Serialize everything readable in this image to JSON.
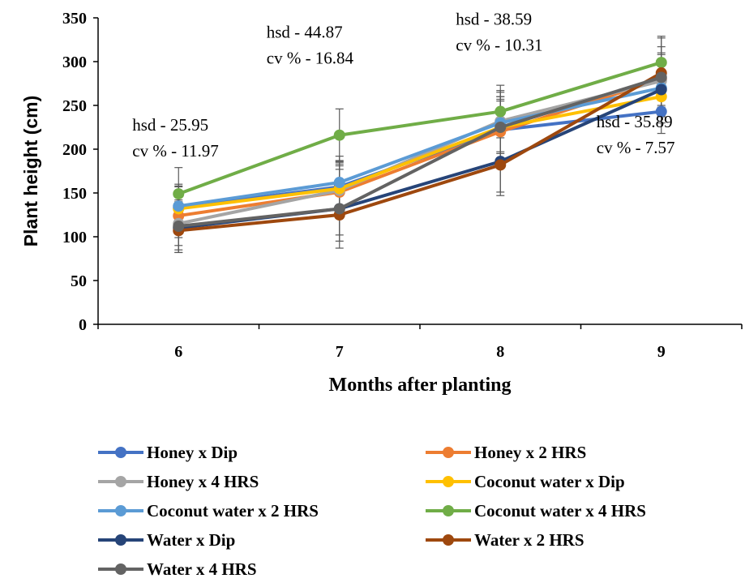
{
  "chart_data": {
    "type": "line",
    "xlabel": "Months after planting",
    "ylabel": "Plant height (cm)",
    "ylim": [
      0,
      350
    ],
    "yticks": [
      0,
      50,
      100,
      150,
      200,
      250,
      300,
      350
    ],
    "categories": [
      "6",
      "7",
      "8",
      "9"
    ],
    "grid": false,
    "legend_position": "bottom",
    "series": [
      {
        "name": "Honey x Dip",
        "color": "#4472C4",
        "values": [
          133,
          157,
          222,
          243
        ],
        "error": [
          25,
          30,
          35,
          25
        ]
      },
      {
        "name": "Honey x 2 HRS",
        "color": "#ED7D31",
        "values": [
          124,
          151,
          220,
          280
        ],
        "error": [
          25,
          30,
          35,
          30
        ]
      },
      {
        "name": "Honey x 4 HRS",
        "color": "#A5A5A5",
        "values": [
          115,
          153,
          232,
          278
        ],
        "error": [
          25,
          30,
          35,
          30
        ]
      },
      {
        "name": "Coconut water x Dip",
        "color": "#FFC000",
        "values": [
          132,
          155,
          225,
          260
        ],
        "error": [
          25,
          30,
          35,
          30
        ]
      },
      {
        "name": "Coconut water x 2 HRS",
        "color": "#5B9BD5",
        "values": [
          135,
          162,
          230,
          270
        ],
        "error": [
          25,
          30,
          35,
          30
        ]
      },
      {
        "name": "Coconut water x 4 HRS",
        "color": "#70AD47",
        "values": [
          149,
          216,
          243,
          299
        ],
        "error": [
          30,
          30,
          30,
          30
        ]
      },
      {
        "name": "Water x Dip",
        "color": "#264478",
        "values": [
          110,
          132,
          186,
          268
        ],
        "error": [
          25,
          30,
          35,
          30
        ]
      },
      {
        "name": "Water x 2 HRS",
        "color": "#9E480E",
        "values": [
          107,
          125,
          182,
          287
        ],
        "error": [
          25,
          30,
          35,
          30
        ]
      },
      {
        "name": "Water x 4 HRS",
        "color": "#636363",
        "values": [
          112,
          132,
          225,
          282
        ],
        "error": [
          30,
          45,
          35,
          45
        ]
      }
    ],
    "annotations": [
      {
        "x": "6",
        "lines": [
          "hsd - 25.95",
          "cv % - 11.97"
        ]
      },
      {
        "x": "7",
        "lines": [
          "hsd - 44.87",
          "cv % - 16.84"
        ]
      },
      {
        "x": "8",
        "lines": [
          "hsd - 38.59",
          "cv % - 10.31"
        ]
      },
      {
        "x": "9",
        "lines": [
          "hsd - 35.89",
          "cv % - 7.57"
        ]
      }
    ]
  }
}
